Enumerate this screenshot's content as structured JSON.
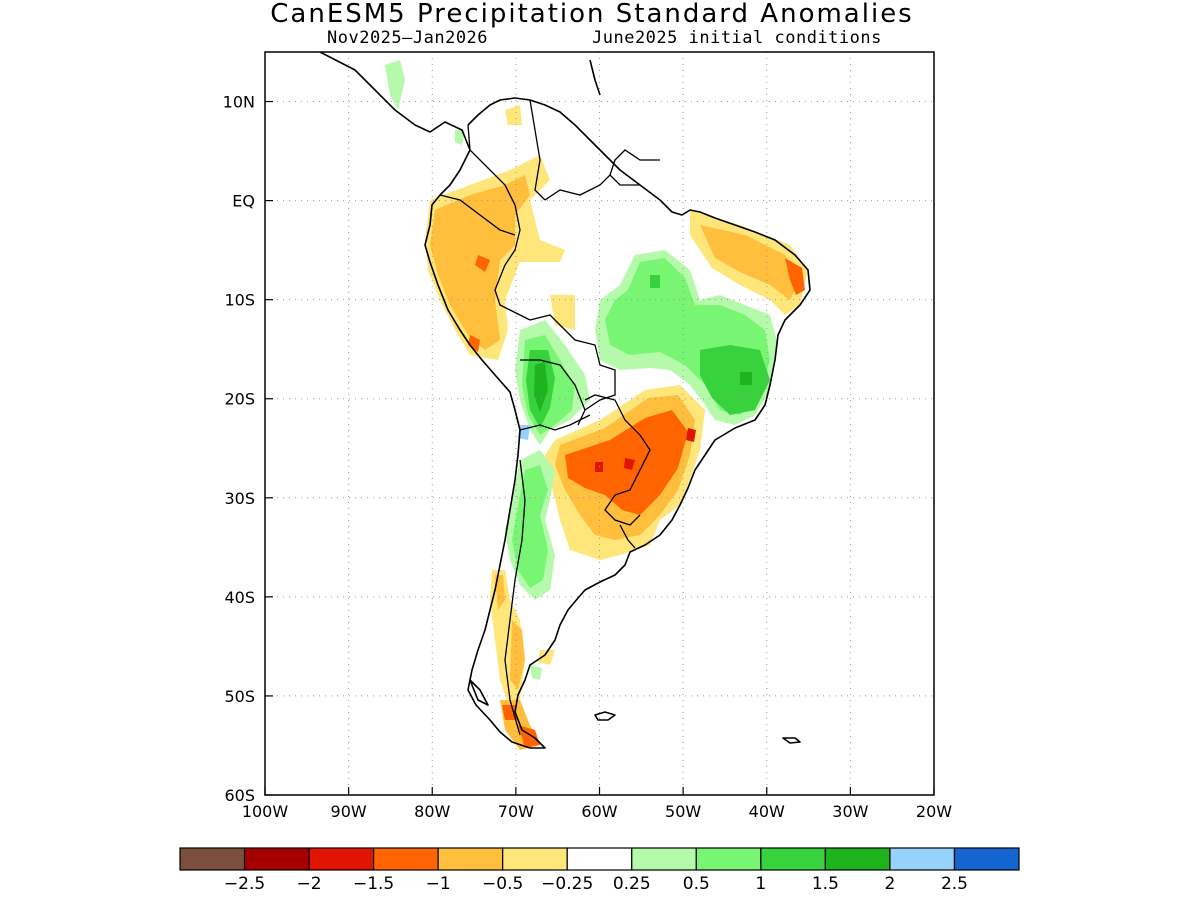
{
  "title": "CanESM5 Precipitation Standard Anomalies",
  "subtitle_left": "Nov2025–Jan2026",
  "subtitle_right": "June2025 initial conditions",
  "map": {
    "region": "South America",
    "lon_range": [
      -100,
      -20
    ],
    "lat_range": [
      -60,
      15
    ],
    "lon_ticks": [
      {
        "lon": -100,
        "label": "100W"
      },
      {
        "lon": -90,
        "label": "90W"
      },
      {
        "lon": -80,
        "label": "80W"
      },
      {
        "lon": -70,
        "label": "70W"
      },
      {
        "lon": -60,
        "label": "60W"
      },
      {
        "lon": -50,
        "label": "50W"
      },
      {
        "lon": -40,
        "label": "40W"
      },
      {
        "lon": -30,
        "label": "30W"
      },
      {
        "lon": -20,
        "label": "20W"
      }
    ],
    "lat_ticks": [
      {
        "lat": 10,
        "label": "10N"
      },
      {
        "lat": 0,
        "label": "EQ"
      },
      {
        "lat": -10,
        "label": "10S"
      },
      {
        "lat": -20,
        "label": "20S"
      },
      {
        "lat": -30,
        "label": "30S"
      },
      {
        "lat": -40,
        "label": "40S"
      },
      {
        "lat": -50,
        "label": "50S"
      },
      {
        "lat": -60,
        "label": "60S"
      }
    ],
    "grid": "dotted"
  },
  "colorbar": {
    "colors": [
      "#7a4f3e",
      "#a50000",
      "#e01400",
      "#ff6400",
      "#ffbe3c",
      "#ffe67a",
      "#ffffff",
      "#b4faaa",
      "#78f573",
      "#37d23c",
      "#1eb41e",
      "#96d2fa",
      "#1464d2"
    ],
    "labels": [
      "−2.5",
      "−2",
      "−1.5",
      "−1",
      "−0.5",
      "−0.25",
      "0.25",
      "0.5",
      "1",
      "1.5",
      "2",
      "2.5"
    ]
  }
}
